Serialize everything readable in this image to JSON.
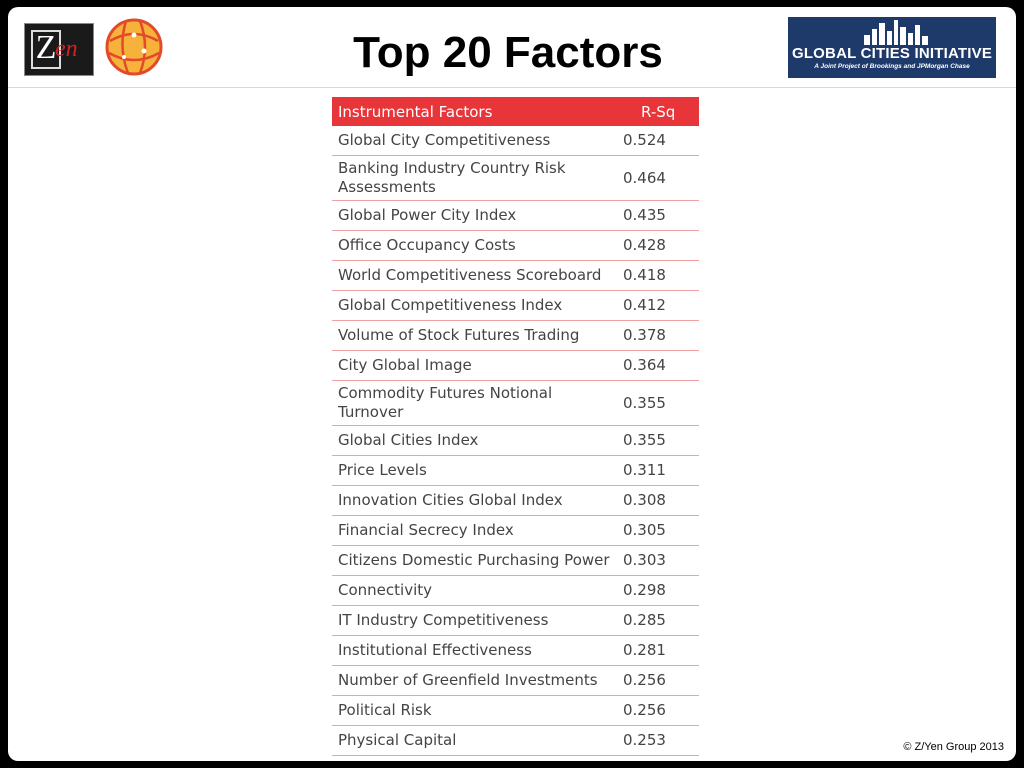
{
  "title": "Top 20 Factors",
  "logos": {
    "zyen_left": "Z",
    "zyen_right": "en",
    "gci_title": "GLOBAL CITIES INITIATIVE",
    "gci_subtitle": "A Joint Project of Brookings and JPMorgan Chase"
  },
  "table": {
    "headers": [
      "Instrumental Factors",
      "R-Sq"
    ],
    "rows": [
      {
        "factor": "Global City Competitiveness",
        "rsq": "0.524"
      },
      {
        "factor": "Banking Industry Country Risk Assessments",
        "rsq": "0.464"
      },
      {
        "factor": "Global Power City Index",
        "rsq": "0.435"
      },
      {
        "factor": "Office Occupancy Costs",
        "rsq": "0.428"
      },
      {
        "factor": "World Competitiveness Scoreboard",
        "rsq": "0.418"
      },
      {
        "factor": "Global Competitiveness Index",
        "rsq": "0.412"
      },
      {
        "factor": "Volume of Stock Futures Trading",
        "rsq": "0.378"
      },
      {
        "factor": "City Global Image",
        "rsq": "0.364"
      },
      {
        "factor": "Commodity Futures Notional Turnover",
        "rsq": "0.355"
      },
      {
        "factor": "Global Cities Index",
        "rsq": "0.355"
      },
      {
        "factor": "Price Levels",
        "rsq": "0.311"
      },
      {
        "factor": "Innovation Cities Global Index",
        "rsq": "0.308"
      },
      {
        "factor": "Financial Secrecy Index",
        "rsq": "0.305"
      },
      {
        "factor": "Citizens Domestic Purchasing Power",
        "rsq": "0.303"
      },
      {
        "factor": "Connectivity",
        "rsq": "0.298"
      },
      {
        "factor": "IT Industry Competitiveness",
        "rsq": "0.285"
      },
      {
        "factor": "Institutional Effectiveness",
        "rsq": "0.281"
      },
      {
        "factor": "Number of Greenfield Investments",
        "rsq": "0.256"
      },
      {
        "factor": "Political Risk",
        "rsq": "0.256"
      },
      {
        "factor": "Physical Capital",
        "rsq": "0.253"
      }
    ]
  },
  "footer": "© Z/Yen Group 2013",
  "colors": {
    "header_red": "#e8353a",
    "gci_navy": "#1d3a6b"
  }
}
